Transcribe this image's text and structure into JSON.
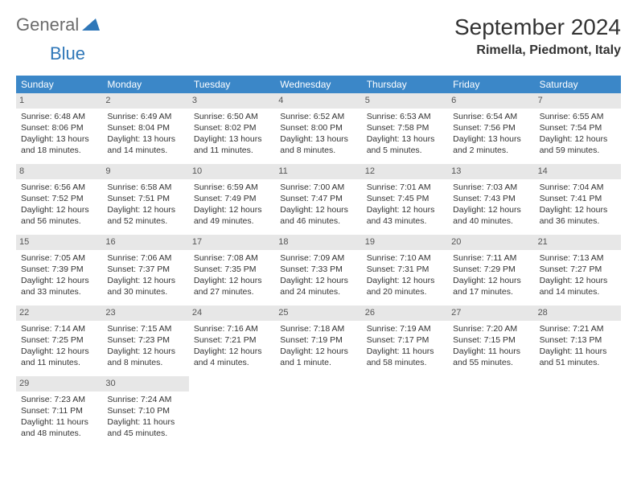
{
  "brand": {
    "part1": "General",
    "part2": "Blue"
  },
  "title": "September 2024",
  "location": "Rimella, Piedmont, Italy",
  "colors": {
    "header_bg": "#3b87c8",
    "header_text": "#ffffff",
    "daynum_bg": "#e7e7e7",
    "brand_gray": "#6b6b6b",
    "brand_blue": "#2f77b8"
  },
  "daysOfWeek": [
    "Sunday",
    "Monday",
    "Tuesday",
    "Wednesday",
    "Thursday",
    "Friday",
    "Saturday"
  ],
  "grid": {
    "leading_blanks": 0,
    "days": [
      {
        "n": 1,
        "sunrise": "6:48 AM",
        "sunset": "8:06 PM",
        "daylight": "13 hours and 18 minutes."
      },
      {
        "n": 2,
        "sunrise": "6:49 AM",
        "sunset": "8:04 PM",
        "daylight": "13 hours and 14 minutes."
      },
      {
        "n": 3,
        "sunrise": "6:50 AM",
        "sunset": "8:02 PM",
        "daylight": "13 hours and 11 minutes."
      },
      {
        "n": 4,
        "sunrise": "6:52 AM",
        "sunset": "8:00 PM",
        "daylight": "13 hours and 8 minutes."
      },
      {
        "n": 5,
        "sunrise": "6:53 AM",
        "sunset": "7:58 PM",
        "daylight": "13 hours and 5 minutes."
      },
      {
        "n": 6,
        "sunrise": "6:54 AM",
        "sunset": "7:56 PM",
        "daylight": "13 hours and 2 minutes."
      },
      {
        "n": 7,
        "sunrise": "6:55 AM",
        "sunset": "7:54 PM",
        "daylight": "12 hours and 59 minutes."
      },
      {
        "n": 8,
        "sunrise": "6:56 AM",
        "sunset": "7:52 PM",
        "daylight": "12 hours and 56 minutes."
      },
      {
        "n": 9,
        "sunrise": "6:58 AM",
        "sunset": "7:51 PM",
        "daylight": "12 hours and 52 minutes."
      },
      {
        "n": 10,
        "sunrise": "6:59 AM",
        "sunset": "7:49 PM",
        "daylight": "12 hours and 49 minutes."
      },
      {
        "n": 11,
        "sunrise": "7:00 AM",
        "sunset": "7:47 PM",
        "daylight": "12 hours and 46 minutes."
      },
      {
        "n": 12,
        "sunrise": "7:01 AM",
        "sunset": "7:45 PM",
        "daylight": "12 hours and 43 minutes."
      },
      {
        "n": 13,
        "sunrise": "7:03 AM",
        "sunset": "7:43 PM",
        "daylight": "12 hours and 40 minutes."
      },
      {
        "n": 14,
        "sunrise": "7:04 AM",
        "sunset": "7:41 PM",
        "daylight": "12 hours and 36 minutes."
      },
      {
        "n": 15,
        "sunrise": "7:05 AM",
        "sunset": "7:39 PM",
        "daylight": "12 hours and 33 minutes."
      },
      {
        "n": 16,
        "sunrise": "7:06 AM",
        "sunset": "7:37 PM",
        "daylight": "12 hours and 30 minutes."
      },
      {
        "n": 17,
        "sunrise": "7:08 AM",
        "sunset": "7:35 PM",
        "daylight": "12 hours and 27 minutes."
      },
      {
        "n": 18,
        "sunrise": "7:09 AM",
        "sunset": "7:33 PM",
        "daylight": "12 hours and 24 minutes."
      },
      {
        "n": 19,
        "sunrise": "7:10 AM",
        "sunset": "7:31 PM",
        "daylight": "12 hours and 20 minutes."
      },
      {
        "n": 20,
        "sunrise": "7:11 AM",
        "sunset": "7:29 PM",
        "daylight": "12 hours and 17 minutes."
      },
      {
        "n": 21,
        "sunrise": "7:13 AM",
        "sunset": "7:27 PM",
        "daylight": "12 hours and 14 minutes."
      },
      {
        "n": 22,
        "sunrise": "7:14 AM",
        "sunset": "7:25 PM",
        "daylight": "12 hours and 11 minutes."
      },
      {
        "n": 23,
        "sunrise": "7:15 AM",
        "sunset": "7:23 PM",
        "daylight": "12 hours and 8 minutes."
      },
      {
        "n": 24,
        "sunrise": "7:16 AM",
        "sunset": "7:21 PM",
        "daylight": "12 hours and 4 minutes."
      },
      {
        "n": 25,
        "sunrise": "7:18 AM",
        "sunset": "7:19 PM",
        "daylight": "12 hours and 1 minute."
      },
      {
        "n": 26,
        "sunrise": "7:19 AM",
        "sunset": "7:17 PM",
        "daylight": "11 hours and 58 minutes."
      },
      {
        "n": 27,
        "sunrise": "7:20 AM",
        "sunset": "7:15 PM",
        "daylight": "11 hours and 55 minutes."
      },
      {
        "n": 28,
        "sunrise": "7:21 AM",
        "sunset": "7:13 PM",
        "daylight": "11 hours and 51 minutes."
      },
      {
        "n": 29,
        "sunrise": "7:23 AM",
        "sunset": "7:11 PM",
        "daylight": "11 hours and 48 minutes."
      },
      {
        "n": 30,
        "sunrise": "7:24 AM",
        "sunset": "7:10 PM",
        "daylight": "11 hours and 45 minutes."
      }
    ]
  },
  "labels": {
    "sunrise": "Sunrise:",
    "sunset": "Sunset:",
    "daylight": "Daylight:"
  }
}
